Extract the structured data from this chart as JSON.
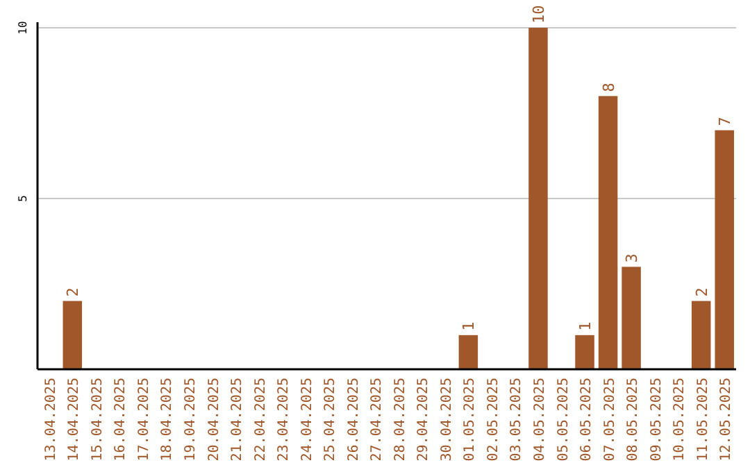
{
  "chart_data": {
    "type": "bar",
    "categories": [
      "13.04.2025",
      "14.04.2025",
      "15.04.2025",
      "16.04.2025",
      "17.04.2025",
      "18.04.2025",
      "19.04.2025",
      "20.04.2025",
      "21.04.2025",
      "22.04.2025",
      "23.04.2025",
      "24.04.2025",
      "25.04.2025",
      "26.04.2025",
      "27.04.2025",
      "28.04.2025",
      "29.04.2025",
      "30.04.2025",
      "01.05.2025",
      "02.05.2025",
      "03.05.2025",
      "04.05.2025",
      "05.05.2025",
      "06.05.2025",
      "07.05.2025",
      "08.05.2025",
      "09.05.2025",
      "10.05.2025",
      "11.05.2025",
      "12.05.2025"
    ],
    "values": [
      0,
      2,
      0,
      0,
      0,
      0,
      0,
      0,
      0,
      0,
      0,
      0,
      0,
      0,
      0,
      0,
      0,
      0,
      1,
      0,
      0,
      10,
      0,
      1,
      8,
      3,
      0,
      0,
      2,
      7
    ],
    "value_labels": [
      null,
      "2",
      null,
      null,
      null,
      null,
      null,
      null,
      null,
      null,
      null,
      null,
      null,
      null,
      null,
      null,
      null,
      null,
      "1",
      null,
      null,
      "10",
      null,
      "1",
      "8",
      "3",
      null,
      null,
      "2",
      "7"
    ],
    "color": "#a0572a",
    "ylim": [
      0,
      10
    ],
    "yticks": [
      5,
      10
    ],
    "grid": "y"
  }
}
